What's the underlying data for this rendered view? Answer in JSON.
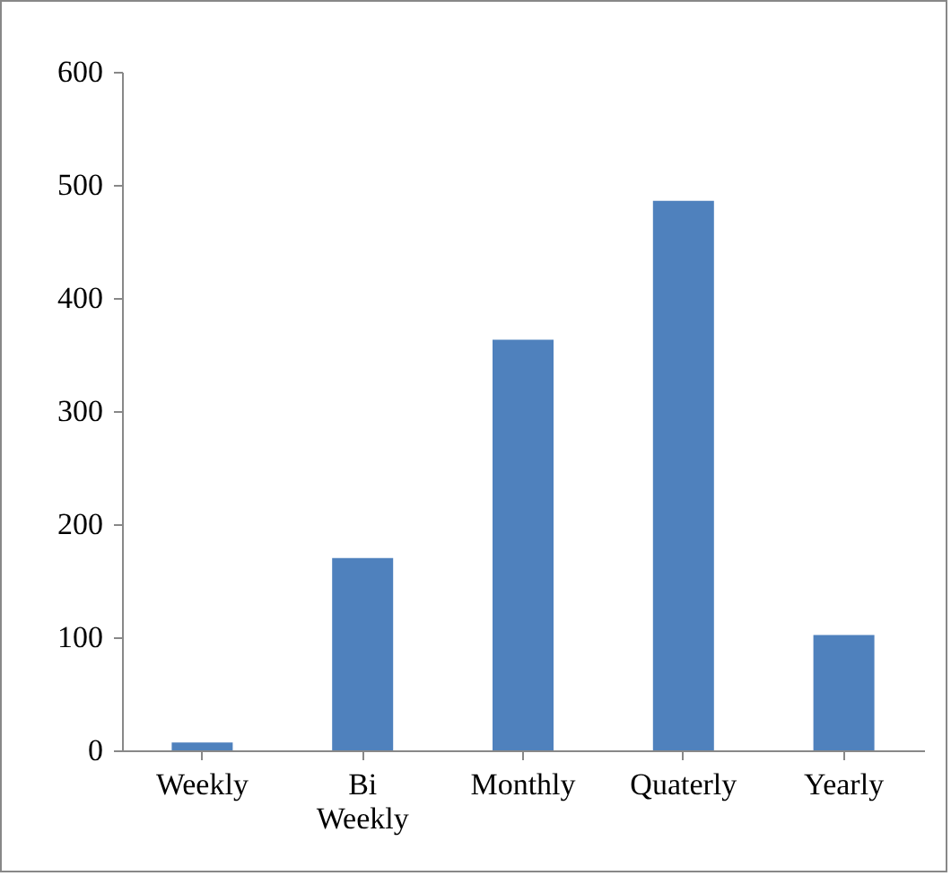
{
  "chart_data": {
    "type": "bar",
    "categories": [
      "Weekly",
      "Bi Weekly",
      "Monthly",
      "Quaterly",
      "Yearly"
    ],
    "values": [
      7,
      170,
      363,
      486,
      102
    ],
    "color": "#4f81bd",
    "ylim": [
      0,
      600
    ],
    "yticks": [
      0,
      100,
      200,
      300,
      400,
      500,
      600
    ],
    "grid": false
  }
}
